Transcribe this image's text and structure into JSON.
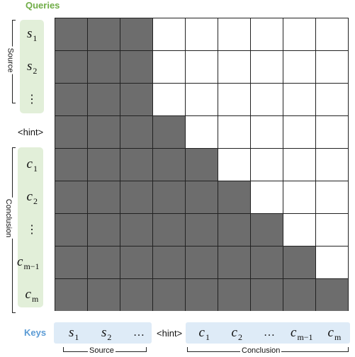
{
  "queries_label": "Queries",
  "keys_label": "Keys",
  "hint_token": "<hint>",
  "ellipsis": "...",
  "source_label": "Source",
  "conclusion_label": "Conclusion",
  "query_rows": [
    {
      "base": "s",
      "sub": "1"
    },
    {
      "base": "s",
      "sub": "2"
    },
    {
      "base": "⋮",
      "sub": ""
    },
    {
      "base": "<hint>",
      "sub": ""
    },
    {
      "base": "c",
      "sub": "1"
    },
    {
      "base": "c",
      "sub": "2"
    },
    {
      "base": "⋮",
      "sub": ""
    },
    {
      "base": "c",
      "sub": "m−1"
    },
    {
      "base": "c",
      "sub": "m"
    }
  ],
  "key_cols": [
    {
      "base": "s",
      "sub": "1"
    },
    {
      "base": "s",
      "sub": "2"
    },
    {
      "base": "…",
      "sub": ""
    },
    {
      "base": "<hint>",
      "sub": ""
    },
    {
      "base": "c",
      "sub": "1"
    },
    {
      "base": "c",
      "sub": "2"
    },
    {
      "base": "…",
      "sub": ""
    },
    {
      "base": "c",
      "sub": "m−1"
    },
    {
      "base": "c",
      "sub": "m"
    }
  ],
  "colors": {
    "masked_fill": "#6d6d6d",
    "open_fill": "#ffffff",
    "queries_green": "#70ad47",
    "keys_blue": "#5b9bd5"
  },
  "mask_rule": "source columns and lower triangle are attended (grey)"
}
